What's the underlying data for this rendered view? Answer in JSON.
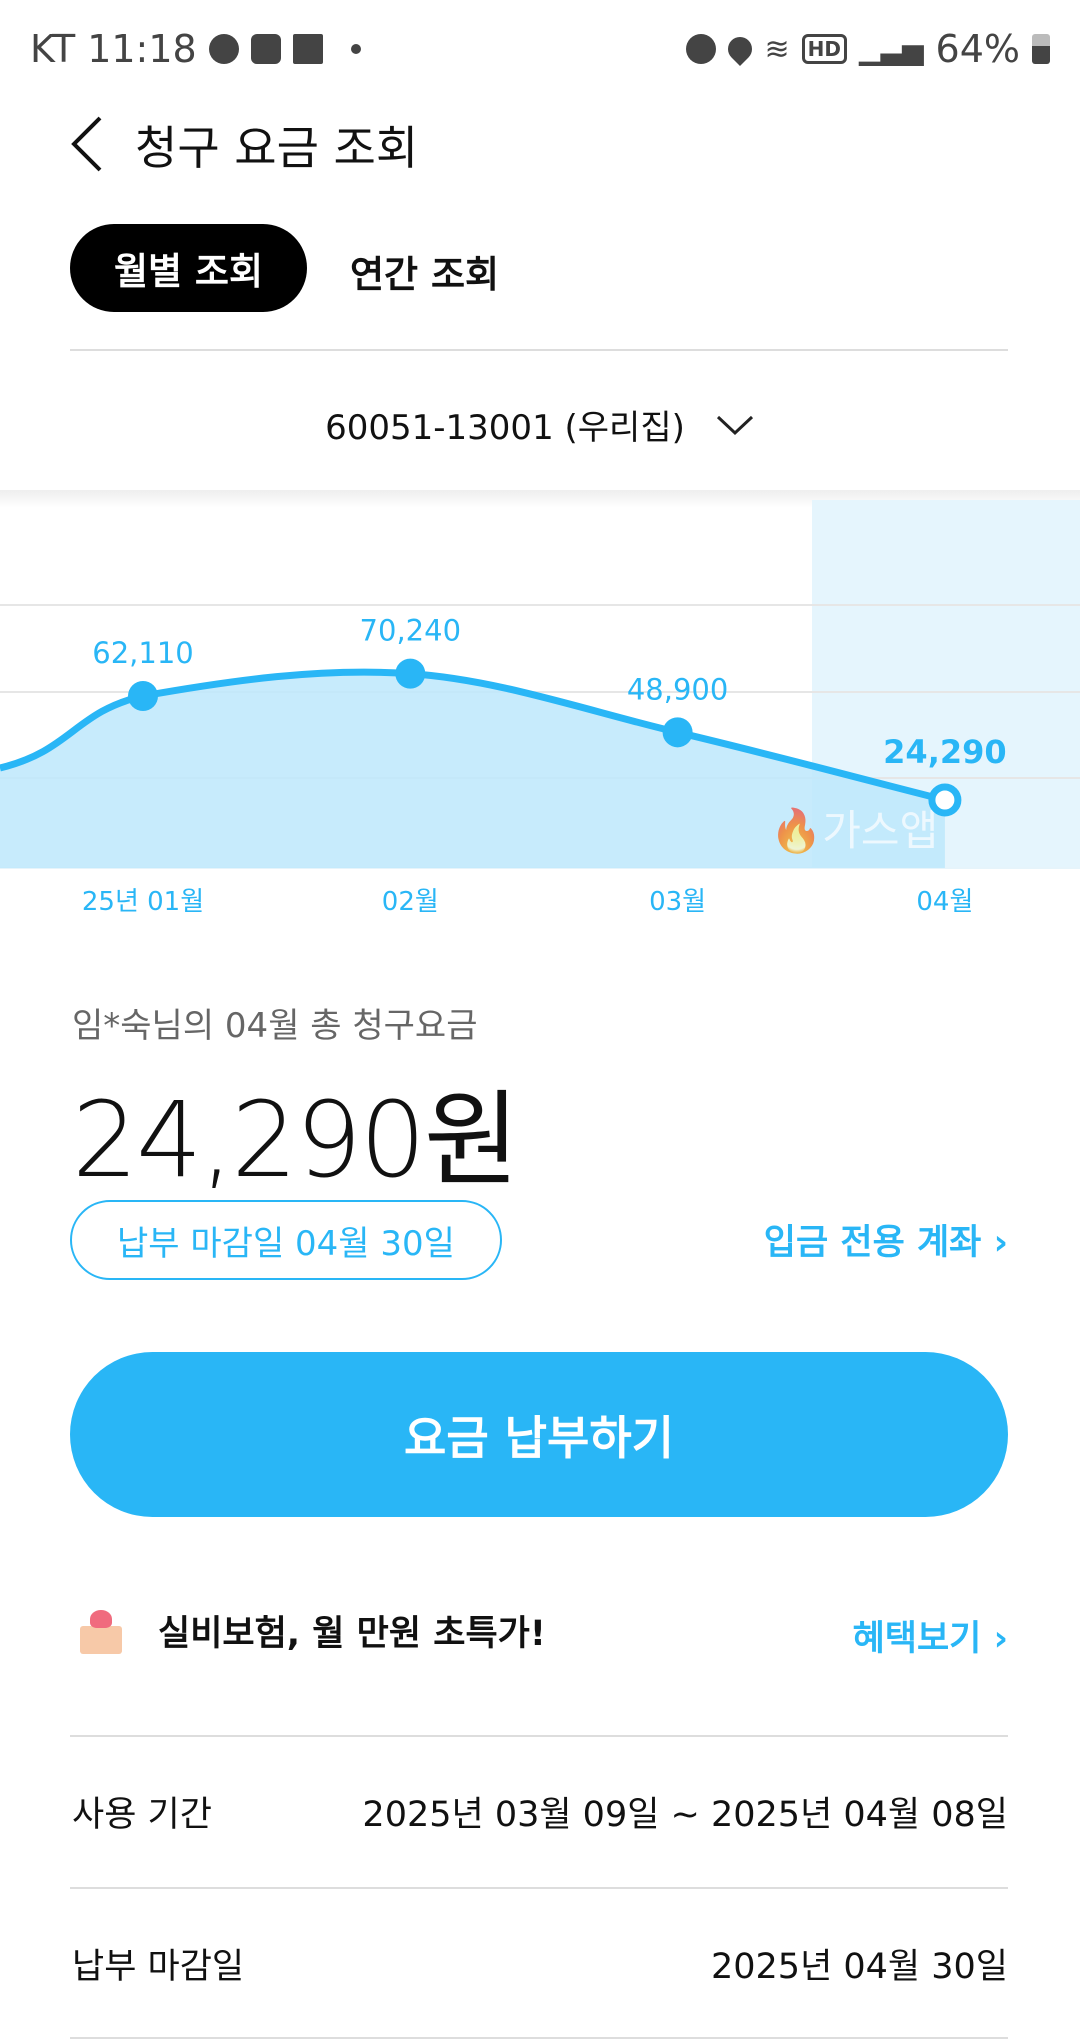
{
  "status_bar": {
    "carrier": "KT",
    "time": "11:18",
    "battery": "64%",
    "icons_left": [
      "messenger-icon",
      "gallery-icon",
      "grid-icon",
      "dot-icon"
    ],
    "icons_right": [
      "alarm-icon",
      "location-icon",
      "wifi-icon",
      "hd-voice-icon",
      "signal-icon",
      "battery-icon"
    ]
  },
  "header": {
    "title": "청구 요금 조회"
  },
  "tabs": [
    {
      "label": "월별 조회",
      "active": true
    },
    {
      "label": "연간 조회",
      "active": false
    }
  ],
  "account": {
    "selected": "60051-13001 (우리집)"
  },
  "chart_data": {
    "type": "area",
    "categories": [
      "25년 01월",
      "02월",
      "03월",
      "04월"
    ],
    "values": [
      62110,
      70240,
      48900,
      24290
    ],
    "data_labels": [
      "62,110",
      "70,240",
      "48,900",
      "24,290"
    ],
    "highlighted": "04월",
    "watermark": "가스앱",
    "grid": true,
    "colors": {
      "line": "#29b6f6",
      "fill": "#bde8fb",
      "highlight": "#e5f5fd"
    }
  },
  "summary": {
    "label": "임*숙님의 04월 총 청구요금",
    "amount": "24,290원",
    "due_badge": "납부 마감일 04월 30일",
    "account_link": "입금 전용 계좌"
  },
  "pay_button": "요금 납부하기",
  "promo": {
    "text": "실비보험, 월 만원 초특가!",
    "link": "혜택보기"
  },
  "details": [
    {
      "label": "사용 기간",
      "value": "2025년 03월 09일 ~ 2025년 04월 08일"
    },
    {
      "label": "납부 마감일",
      "value": "2025년 04월 30일"
    }
  ],
  "colors": {
    "accent": "#29b6f6"
  }
}
